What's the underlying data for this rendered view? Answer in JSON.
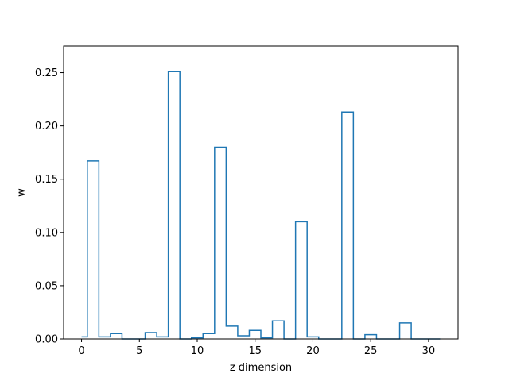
{
  "chart_data": {
    "type": "step",
    "title": "",
    "xlabel": "z dimension",
    "ylabel": "w",
    "xlim": [
      -1.55,
      32.55
    ],
    "ylim": [
      0.0,
      0.275
    ],
    "x": [
      0,
      1,
      2,
      3,
      4,
      5,
      6,
      7,
      8,
      9,
      10,
      11,
      12,
      13,
      14,
      15,
      16,
      17,
      18,
      19,
      20,
      21,
      22,
      23,
      24,
      25,
      26,
      27,
      28,
      29,
      30,
      31
    ],
    "values": [
      0.002,
      0.167,
      0.002,
      0.005,
      0.0,
      0.0,
      0.006,
      0.002,
      0.251,
      0.0,
      0.001,
      0.005,
      0.18,
      0.012,
      0.003,
      0.008,
      0.001,
      0.017,
      0.0,
      0.11,
      0.002,
      0.0,
      0.0,
      0.213,
      0.0,
      0.004,
      0.0,
      0.0,
      0.015,
      0.0,
      0.0,
      0.0
    ],
    "xticks": [
      0,
      5,
      10,
      15,
      20,
      25,
      30
    ],
    "xtick_labels": [
      "0",
      "5",
      "10",
      "15",
      "20",
      "25",
      "30"
    ],
    "yticks": [
      0.0,
      0.05,
      0.1,
      0.15,
      0.2,
      0.25
    ],
    "ytick_labels": [
      "0.00",
      "0.05",
      "0.10",
      "0.15",
      "0.20",
      "0.25"
    ],
    "grid": false,
    "color": "#1f77b4"
  }
}
